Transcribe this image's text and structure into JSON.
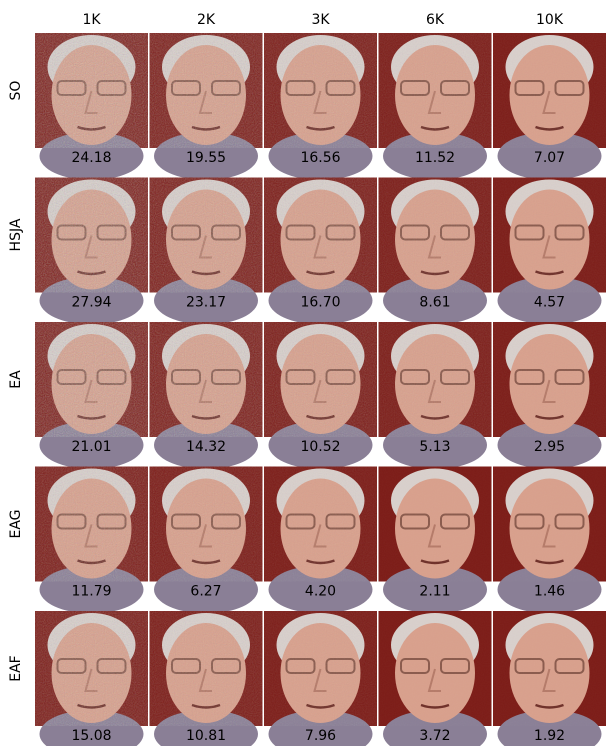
{
  "columns": [
    "1K",
    "2K",
    "3K",
    "6K",
    "10K"
  ],
  "rows": [
    {
      "label": "SO",
      "values": [
        "24.18",
        "19.55",
        "16.56",
        "11.52",
        "7.07"
      ]
    },
    {
      "label": "HSJA",
      "values": [
        "27.94",
        "23.17",
        "16.70",
        "8.61",
        "4.57"
      ]
    },
    {
      "label": "EA",
      "values": [
        "21.01",
        "14.32",
        "10.52",
        "5.13",
        "2.95"
      ]
    },
    {
      "label": "EAG",
      "values": [
        "11.79",
        "6.27",
        "4.20",
        "2.11",
        "1.46"
      ]
    },
    {
      "label": "EAF",
      "values": [
        "15.08",
        "10.81",
        "7.96",
        "3.72",
        "1.92"
      ]
    }
  ]
}
